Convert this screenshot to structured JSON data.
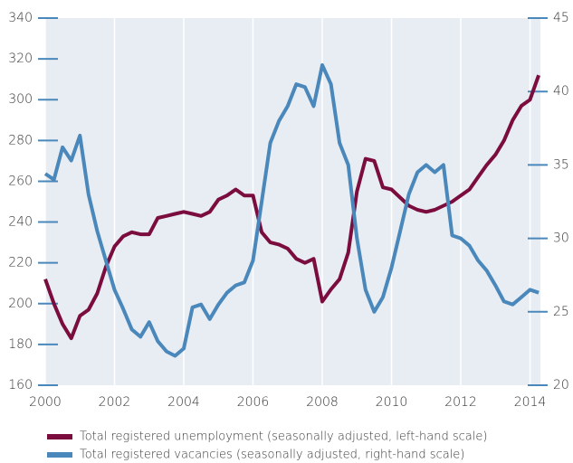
{
  "chart_data": {
    "type": "line",
    "x": [
      2000.0,
      2000.25,
      2000.5,
      2000.75,
      2001.0,
      2001.25,
      2001.5,
      2001.75,
      2002.0,
      2002.25,
      2002.5,
      2002.75,
      2003.0,
      2003.25,
      2003.5,
      2003.75,
      2004.0,
      2004.25,
      2004.5,
      2004.75,
      2005.0,
      2005.25,
      2005.5,
      2005.75,
      2006.0,
      2006.25,
      2006.5,
      2006.75,
      2007.0,
      2007.25,
      2007.5,
      2007.75,
      2008.0,
      2008.25,
      2008.5,
      2008.75,
      2009.0,
      2009.25,
      2009.5,
      2009.75,
      2010.0,
      2010.25,
      2010.5,
      2010.75,
      2011.0,
      2011.25,
      2011.5,
      2011.75,
      2012.0,
      2012.25,
      2012.5,
      2012.75,
      2013.0,
      2013.25,
      2013.5,
      2013.75,
      2014.0,
      2014.25
    ],
    "series": [
      {
        "name": "Total registered unemployment (seasonally adjusted, left-hand scale)",
        "color": "#7b0d3e",
        "values": [
          212,
          200,
          190,
          183,
          194,
          197,
          205,
          218,
          228,
          233,
          235,
          234,
          234,
          242,
          243,
          244,
          245,
          244,
          243,
          245,
          251,
          253,
          256,
          253,
          253,
          235,
          230,
          229,
          227,
          222,
          220,
          222,
          201,
          207,
          212,
          225,
          255,
          271,
          270,
          257,
          256,
          252,
          248,
          246,
          245,
          246,
          248,
          250,
          253,
          256,
          262,
          268,
          273,
          280,
          290,
          297,
          300,
          312
        ]
      },
      {
        "name": "Total registered vacancies (seasonally adjusted, right-hand scale)",
        "color": "#4a87ba",
        "axis": "y2",
        "values": [
          34.4,
          34.0,
          36.2,
          35.3,
          37.0,
          33.0,
          30.5,
          28.5,
          26.5,
          25.2,
          23.8,
          23.3,
          24.3,
          23.0,
          22.3,
          22.0,
          22.5,
          25.3,
          25.5,
          24.5,
          25.5,
          26.3,
          26.8,
          27.0,
          28.5,
          32.5,
          36.5,
          38.0,
          39.0,
          40.5,
          40.3,
          39.0,
          41.8,
          40.5,
          36.5,
          35.0,
          30.0,
          26.5,
          25.0,
          26.0,
          28.0,
          30.5,
          33.0,
          34.5,
          35.0,
          34.5,
          35.0,
          30.2,
          30.0,
          29.5,
          28.5,
          27.8,
          26.8,
          25.7,
          25.5,
          26.0,
          26.5,
          26.3
        ]
      }
    ],
    "xlim": [
      2000,
      2014.3
    ],
    "xticks": [
      2000,
      2002,
      2004,
      2006,
      2008,
      2010,
      2012,
      2014
    ],
    "ylim": [
      160,
      340
    ],
    "yticks": [
      160,
      180,
      200,
      220,
      240,
      260,
      280,
      300,
      320,
      340
    ],
    "y2lim": [
      20,
      45
    ],
    "y2ticks": [
      20,
      25,
      30,
      35,
      40,
      45
    ],
    "grid": true
  }
}
